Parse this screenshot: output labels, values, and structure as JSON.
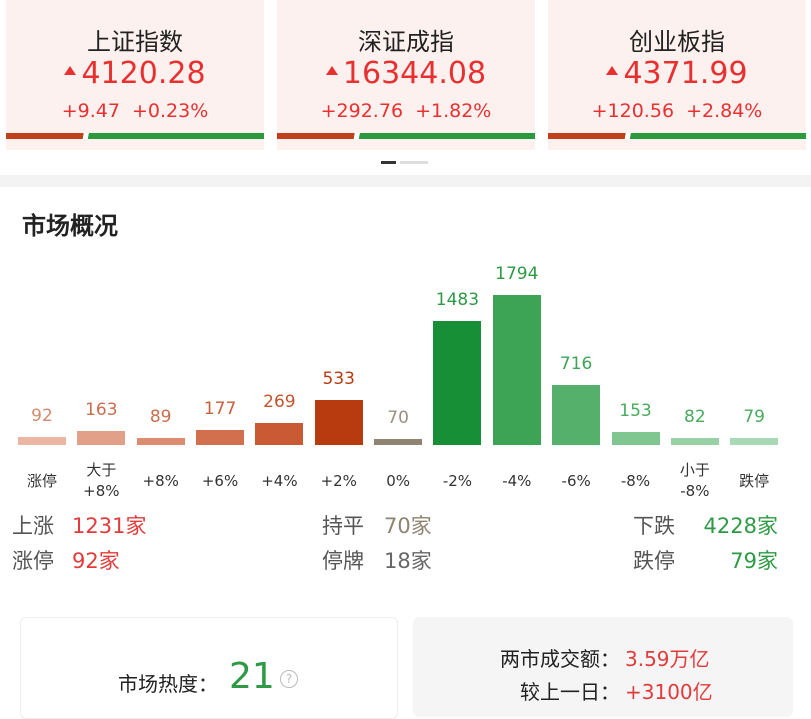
{
  "indices": [
    {
      "name": "上证指数",
      "price": "4120.28",
      "change": "+9.47",
      "percent": "+0.23%"
    },
    {
      "name": "深证成指",
      "price": "16344.08",
      "change": "+292.76",
      "percent": "+1.82%"
    },
    {
      "name": "创业板指",
      "price": "4371.99",
      "change": "+120.56",
      "percent": "+2.84%"
    }
  ],
  "section_title": "市场概况",
  "chart_data": {
    "type": "bar",
    "categories": [
      "涨停",
      "大于\n+8%",
      "+8%",
      "+6%",
      "+4%",
      "+2%",
      "0%",
      "-2%",
      "-4%",
      "-6%",
      "-8%",
      "小于\n-8%",
      "跌停"
    ],
    "values": [
      92,
      163,
      89,
      177,
      269,
      533,
      70,
      1483,
      1794,
      716,
      153,
      82,
      79
    ],
    "colors": [
      "#ebb6a3",
      "#e2a088",
      "#dc8c70",
      "#d2704e",
      "#c95a33",
      "#b83b10",
      "#8f8372",
      "#178f36",
      "#3da456",
      "#54b06a",
      "#80c691",
      "#98d1a5",
      "#a9d9b4"
    ],
    "label_colors": [
      "#d48a6c",
      "#c96e4c",
      "#c96e4c",
      "#c65f3c",
      "#c2542e",
      "#b83b10",
      "#9b9181",
      "#2e9a45",
      "#2e9a45",
      "#3fa456",
      "#4aab5f",
      "#4aab5f",
      "#4aab5f"
    ]
  },
  "stats": [
    {
      "label": "上涨",
      "value": "1231家",
      "color": "#e23b3b"
    },
    {
      "label": "涨停",
      "value": "92家",
      "color": "#e23b3b"
    },
    {
      "label": "持平",
      "value": "70家",
      "color": "#8f8372"
    },
    {
      "label": "停牌",
      "value": "18家",
      "color": "#666666"
    },
    {
      "label": "下跌",
      "value": "4228家",
      "color": "#2e9a45"
    },
    {
      "label": "跌停",
      "value": "79家",
      "color": "#2e9a45"
    }
  ],
  "heat": {
    "label": "市场热度：",
    "value": "21"
  },
  "turnover": [
    {
      "label": "两市成交额：",
      "value": "3.59万亿"
    },
    {
      "label": "较上一日：",
      "value": "+3100亿"
    }
  ]
}
